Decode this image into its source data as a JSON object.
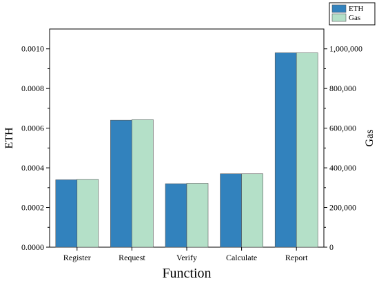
{
  "chart_data": {
    "type": "bar",
    "title": "",
    "xlabel": "Function",
    "ylabel_left": "ETH",
    "ylabel_right": "Gas",
    "categories": [
      "Register",
      "Request",
      "Verify",
      "Calculate",
      "Report"
    ],
    "series": [
      {
        "name": "ETH",
        "axis": "left",
        "color": "#3282bd",
        "values": [
          0.00034,
          0.00064,
          0.00032,
          0.00037,
          0.00098
        ]
      },
      {
        "name": "Gas",
        "axis": "right",
        "color": "#b4e0c8",
        "values": [
          342000,
          643000,
          322000,
          370000,
          980000
        ]
      }
    ],
    "ylim_left": [
      0,
      0.0011
    ],
    "ylim_right": [
      0,
      1100000
    ],
    "yticks_left": [
      "0.0000",
      "0.0002",
      "0.0004",
      "0.0006",
      "0.0008",
      "0.0010"
    ],
    "yticks_right": [
      "0",
      "200,000",
      "400,000",
      "600,000",
      "800,000",
      "1,000,000"
    ],
    "grid": false,
    "legend_position": "top-right"
  }
}
